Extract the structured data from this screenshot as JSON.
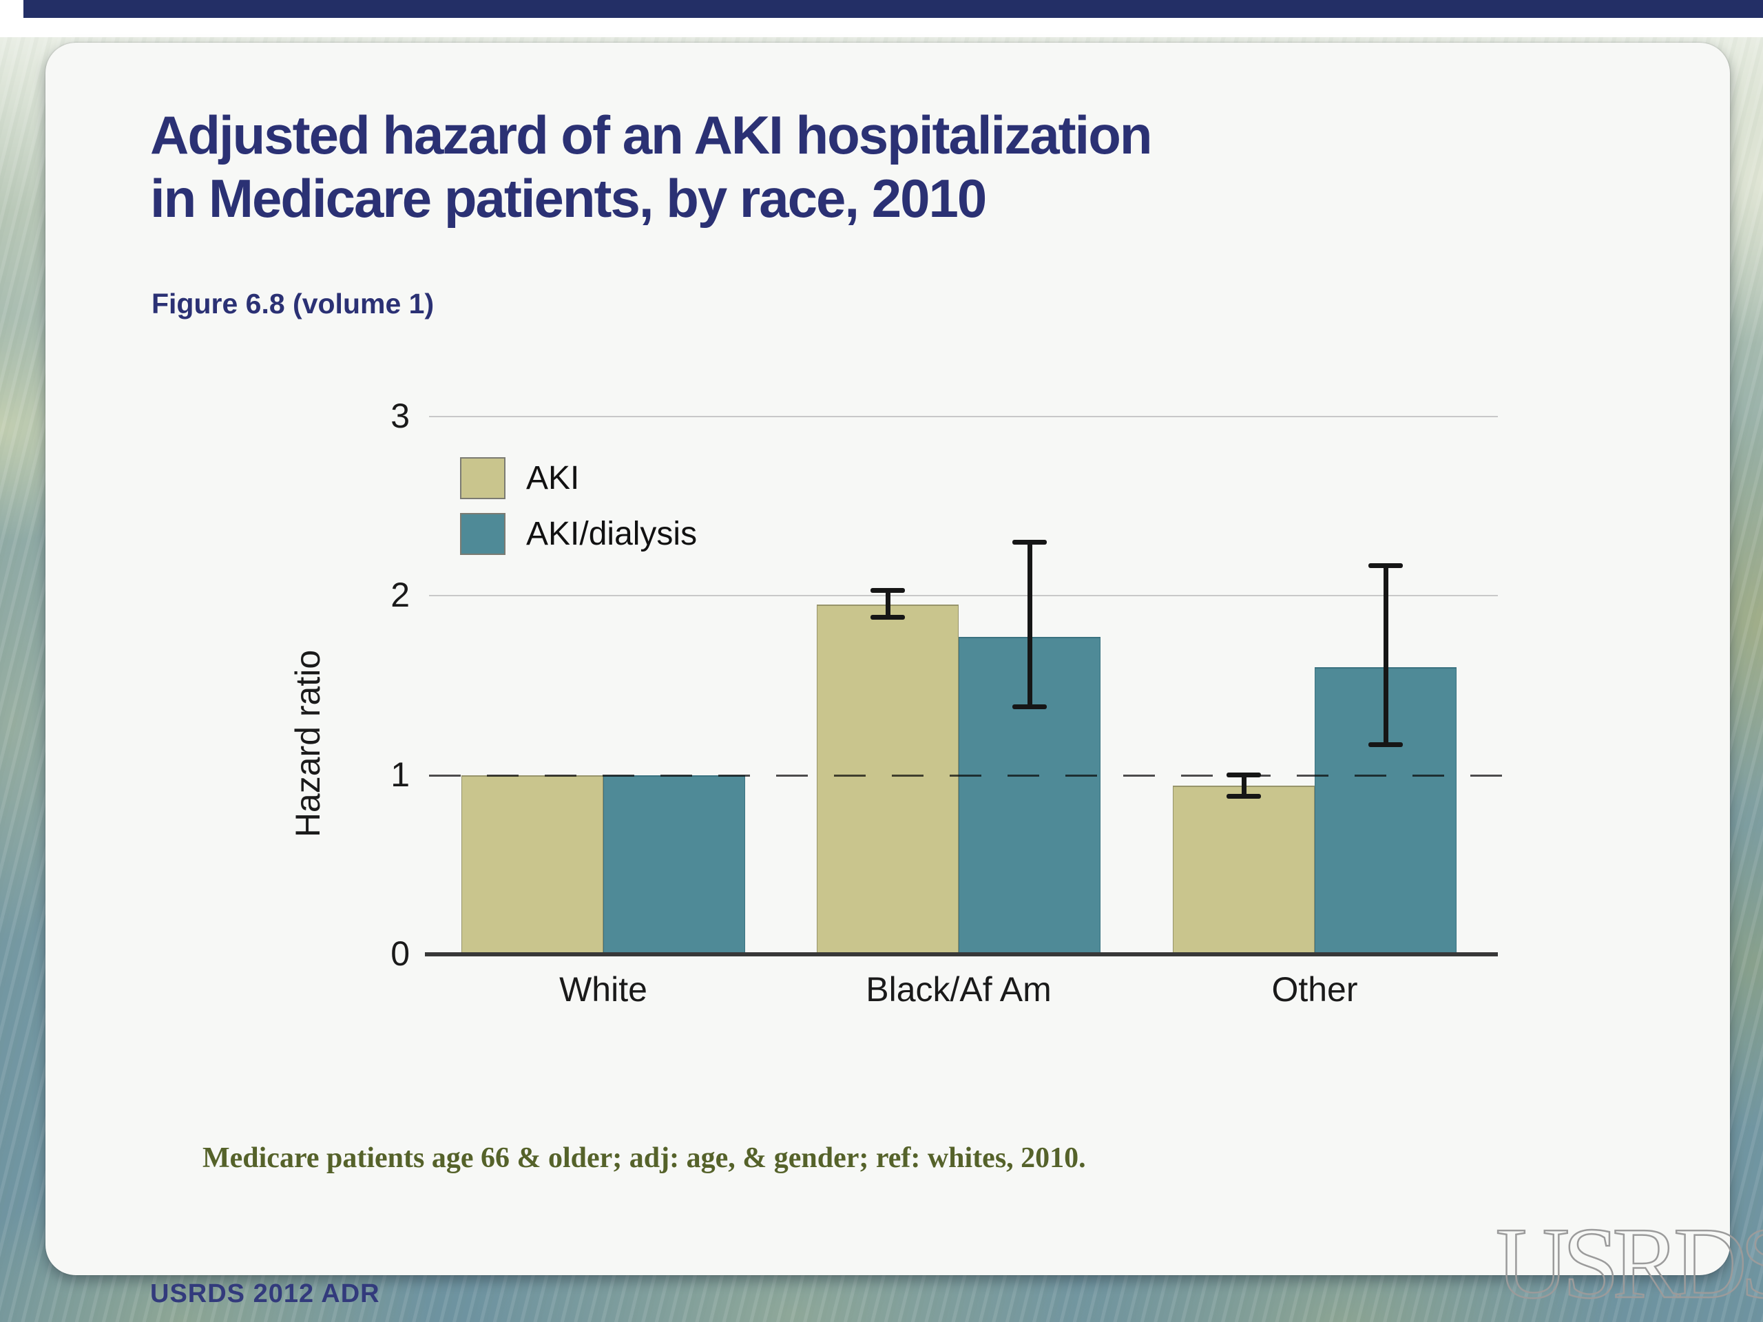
{
  "slide": {
    "title_line1": "Adjusted hazard of an AKI hospitalization",
    "title_line2": "in Medicare patients, by race, 2010",
    "figure_label": "Figure 6.8 (volume 1)",
    "footnote": "Medicare patients age 66 & older; adj: age, & gender; ref: whites, 2010.",
    "footer_left": "USRDS 2012 ADR",
    "logo_text": "USRDS"
  },
  "colors": {
    "title_navy": "#2b3174",
    "top_bar_navy": "#232f66",
    "footnote_olive": "#55622a",
    "footer_navy": "#323a7c",
    "aki_fill": "#c9c58d",
    "aki_border": "#97946a",
    "dialysis_fill": "#4f8a97",
    "dialysis_border": "#3a7280",
    "gridline_gray": "#c8c8c8",
    "axis_dark": "#383838",
    "error_bar_black": "#161616",
    "reference_dash": "rgba(10,10,10,0.72)"
  },
  "chart_data": {
    "type": "bar",
    "title": "",
    "xlabel": "",
    "ylabel": "Hazard ratio",
    "ylim": [
      0,
      3
    ],
    "yticks": [
      0,
      1,
      2,
      3
    ],
    "gridlines_at": [
      2,
      3
    ],
    "reference_line": 1,
    "grid": "horizontal-only",
    "legend_position": "upper-left-inside",
    "categories": [
      "White",
      "Black/Af Am",
      "Other"
    ],
    "series": [
      {
        "name": "AKI",
        "values": [
          1.0,
          1.95,
          0.94
        ],
        "ci_low": [
          null,
          1.88,
          0.88
        ],
        "ci_high": [
          null,
          2.03,
          1.0
        ]
      },
      {
        "name": "AKI/dialysis",
        "values": [
          1.0,
          1.77,
          1.6
        ],
        "ci_low": [
          null,
          1.38,
          1.17
        ],
        "ci_high": [
          null,
          2.3,
          2.17
        ]
      }
    ]
  }
}
